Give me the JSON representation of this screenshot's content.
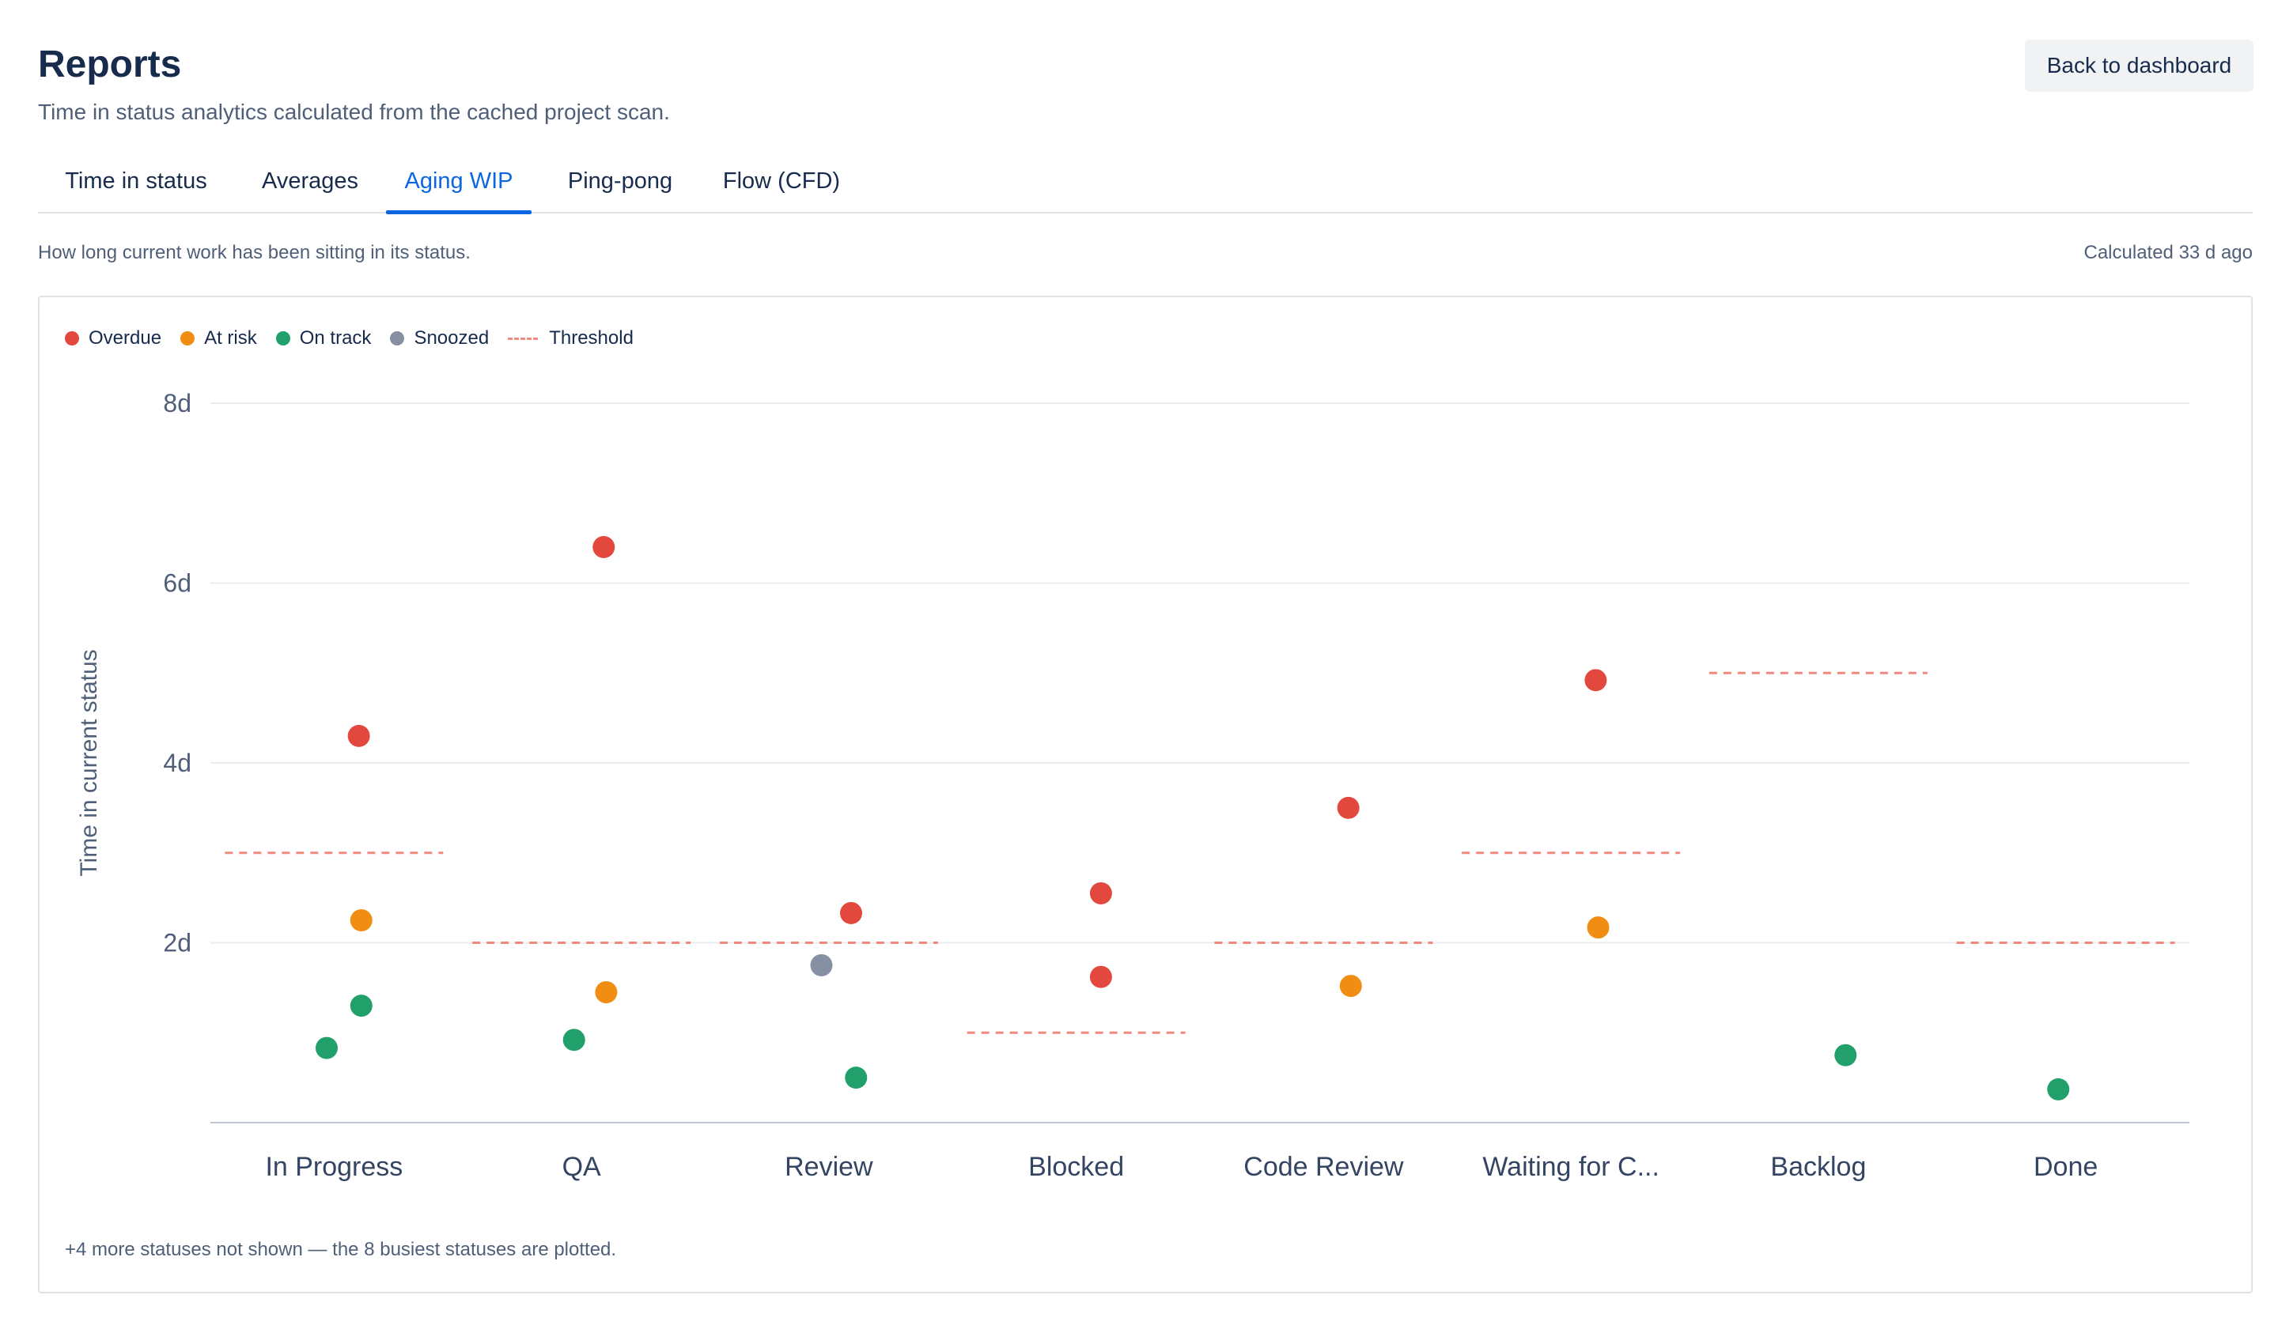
{
  "header": {
    "title": "Reports",
    "subtitle": "Time in status analytics calculated from the cached project scan.",
    "back_label": "Back to dashboard"
  },
  "tabs": [
    {
      "label": "Time in status",
      "active": false
    },
    {
      "label": "Averages",
      "active": false
    },
    {
      "label": "Aging WIP",
      "active": true
    },
    {
      "label": "Ping-pong",
      "active": false
    },
    {
      "label": "Flow (CFD)",
      "active": false
    }
  ],
  "panel": {
    "description": "How long current work has been sitting in its status.",
    "calculated": "Calculated 33 d ago",
    "footnote": "+4 more statuses not shown — the 8 busiest statuses are plotted."
  },
  "legend": [
    {
      "label": "Overdue",
      "color": "#e2483d",
      "shape": "dot"
    },
    {
      "label": "At risk",
      "color": "#f18d13",
      "shape": "dot"
    },
    {
      "label": "On track",
      "color": "#22a06b",
      "shape": "dot"
    },
    {
      "label": "Snoozed",
      "color": "#8590a2",
      "shape": "dot"
    },
    {
      "label": "Threshold",
      "color": "#f08a7e",
      "shape": "dash"
    }
  ],
  "chart_data": {
    "type": "scatter",
    "ylabel": "Time in current status",
    "xlabel": "",
    "ylim": [
      0,
      8
    ],
    "yticks": [
      {
        "value": 2,
        "label": "2d"
      },
      {
        "value": 4,
        "label": "4d"
      },
      {
        "value": 6,
        "label": "6d"
      },
      {
        "value": 8,
        "label": "8d"
      }
    ],
    "grid": true,
    "legend_position": "top-left",
    "categories": [
      "In Progress",
      "QA",
      "Review",
      "Blocked",
      "Code Review",
      "Waiting for C...",
      "Backlog",
      "Done"
    ],
    "thresholds": [
      3,
      2,
      2,
      1,
      2,
      3,
      5,
      2
    ],
    "status_colors": {
      "overdue": "#e2483d",
      "at_risk": "#f18d13",
      "on_track": "#22a06b",
      "snoozed": "#8590a2"
    },
    "points": [
      {
        "category": "In Progress",
        "value": 4.3,
        "status": "overdue",
        "jitter": 0.1
      },
      {
        "category": "In Progress",
        "value": 2.25,
        "status": "at_risk",
        "jitter": 0.11
      },
      {
        "category": "In Progress",
        "value": 1.3,
        "status": "on_track",
        "jitter": 0.11
      },
      {
        "category": "In Progress",
        "value": 0.83,
        "status": "on_track",
        "jitter": -0.03
      },
      {
        "category": "QA",
        "value": 6.4,
        "status": "overdue",
        "jitter": 0.09
      },
      {
        "category": "QA",
        "value": 1.45,
        "status": "at_risk",
        "jitter": 0.1
      },
      {
        "category": "QA",
        "value": 0.92,
        "status": "on_track",
        "jitter": -0.03
      },
      {
        "category": "Review",
        "value": 2.33,
        "status": "overdue",
        "jitter": 0.09
      },
      {
        "category": "Review",
        "value": 1.75,
        "status": "snoozed",
        "jitter": -0.03
      },
      {
        "category": "Review",
        "value": 0.5,
        "status": "on_track",
        "jitter": 0.11
      },
      {
        "category": "Blocked",
        "value": 2.55,
        "status": "overdue",
        "jitter": 0.1
      },
      {
        "category": "Blocked",
        "value": 1.62,
        "status": "overdue",
        "jitter": 0.1
      },
      {
        "category": "Code Review",
        "value": 3.5,
        "status": "overdue",
        "jitter": 0.1
      },
      {
        "category": "Code Review",
        "value": 1.52,
        "status": "at_risk",
        "jitter": 0.11
      },
      {
        "category": "Waiting for C...",
        "value": 4.92,
        "status": "overdue",
        "jitter": 0.1
      },
      {
        "category": "Waiting for C...",
        "value": 2.17,
        "status": "at_risk",
        "jitter": 0.11
      },
      {
        "category": "Backlog",
        "value": 0.75,
        "status": "on_track",
        "jitter": 0.11
      },
      {
        "category": "Done",
        "value": 0.37,
        "status": "on_track",
        "jitter": -0.03
      }
    ]
  }
}
